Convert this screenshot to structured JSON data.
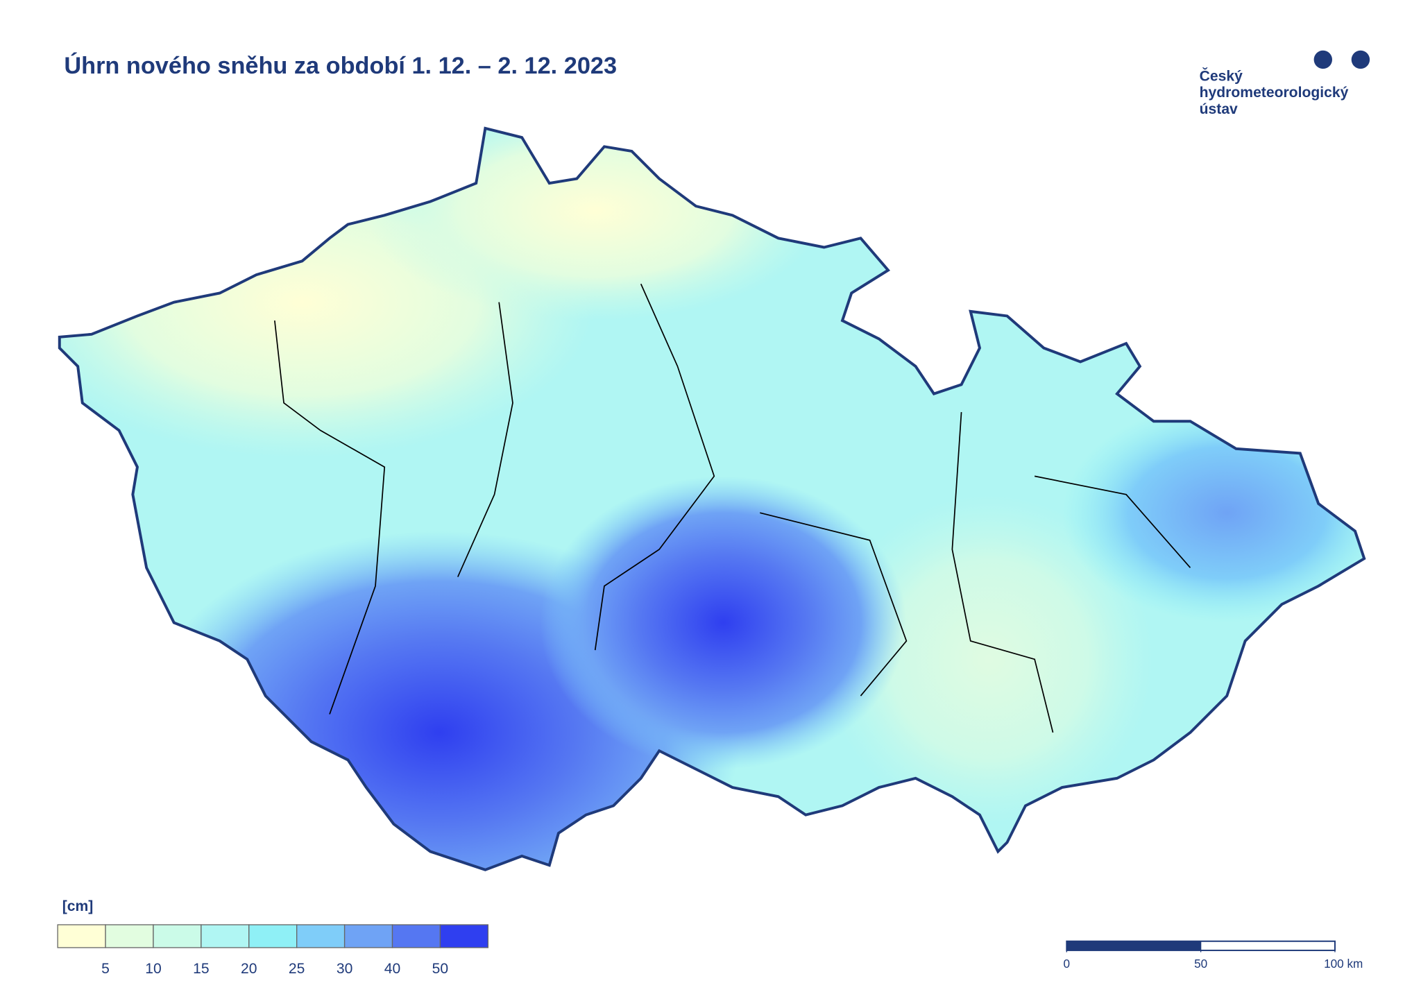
{
  "header": {
    "title": "Úhrn nového sněhu za období 1. 12. – 2. 12. 2023"
  },
  "logo": {
    "lines": [
      "Český",
      "hydrometeorologický",
      "ústav"
    ]
  },
  "legend": {
    "unit": "[cm]",
    "colors": [
      "#ffffd6",
      "#e2fde0",
      "#cbfbe8",
      "#b0f6f3",
      "#8ff0f6",
      "#7fcdf9",
      "#6fa3f5",
      "#5577f2",
      "#2f3ff0"
    ],
    "ticks": [
      5,
      10,
      15,
      20,
      25,
      30,
      40,
      50
    ]
  },
  "scale_bar": {
    "ticks": [
      0,
      50,
      {
        "value": 100,
        "label": "100 km"
      }
    ]
  }
}
